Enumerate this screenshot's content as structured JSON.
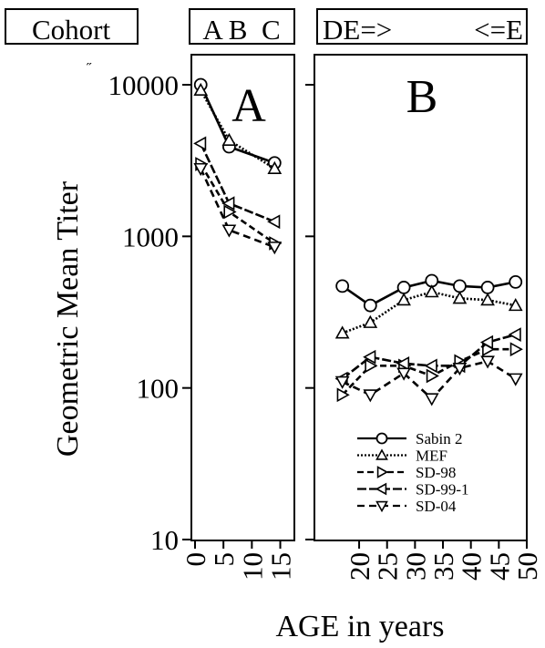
{
  "header": {
    "cohort_label": "Cohort",
    "groups_label": "A B  C",
    "direction_label_left": "DE=>",
    "direction_label_right": "<=E"
  },
  "stray_mark": "˝",
  "chart_data": [
    {
      "type": "line",
      "panel_label": "A",
      "xlabel": "AGE in years",
      "ylabel": "Geometric Mean Titer",
      "yscale": "log",
      "ylim": [
        10,
        20000
      ],
      "xlim": [
        0,
        17
      ],
      "xticks": [
        0,
        5,
        10,
        15
      ],
      "yticks": [
        10,
        100,
        1000,
        10000
      ],
      "series": [
        {
          "name": "Sabin 2",
          "marker": "circle",
          "x": [
            1,
            6,
            14
          ],
          "y": [
            10000,
            3900,
            3050
          ]
        },
        {
          "name": "MEF",
          "marker": "triangle-up",
          "x": [
            1,
            6,
            14
          ],
          "y": [
            9200,
            4300,
            2800
          ]
        },
        {
          "name": "SD-98",
          "marker": "triangle-right",
          "x": [
            1,
            6,
            14
          ],
          "y": [
            3000,
            1450,
            900
          ]
        },
        {
          "name": "SD-99-1",
          "marker": "triangle-left",
          "x": [
            1,
            6,
            14
          ],
          "y": [
            4100,
            1650,
            1250
          ]
        },
        {
          "name": "SD-04",
          "marker": "triangle-down",
          "x": [
            1,
            6,
            14
          ],
          "y": [
            2800,
            1100,
            850
          ]
        }
      ]
    },
    {
      "type": "line",
      "panel_label": "B",
      "xlabel": "AGE in years",
      "yscale": "log",
      "ylim": [
        10,
        20000
      ],
      "xlim": [
        12,
        50
      ],
      "xticks": [
        20,
        25,
        30,
        35,
        40,
        45,
        50
      ],
      "yticks": [
        10,
        100,
        1000,
        10000
      ],
      "legend": {
        "position": "bottom-center",
        "entries": [
          "Sabin 2",
          "MEF",
          "SD-98",
          "SD-99-1",
          "SD-04"
        ]
      },
      "series": [
        {
          "name": "Sabin 2",
          "marker": "circle",
          "x": [
            17,
            22,
            28,
            33,
            38,
            43,
            48
          ],
          "y": [
            470,
            350,
            460,
            510,
            470,
            460,
            500
          ]
        },
        {
          "name": "MEF",
          "marker": "triangle-up",
          "x": [
            17,
            22,
            28,
            33,
            38,
            43,
            48
          ],
          "y": [
            230,
            270,
            380,
            430,
            390,
            380,
            350
          ]
        },
        {
          "name": "SD-98",
          "marker": "triangle-right",
          "x": [
            17,
            22,
            28,
            33,
            38,
            43,
            48
          ],
          "y": [
            90,
            140,
            140,
            120,
            150,
            180,
            180
          ]
        },
        {
          "name": "SD-99-1",
          "marker": "triangle-left",
          "x": [
            17,
            22,
            28,
            33,
            38,
            43,
            48
          ],
          "y": [
            115,
            160,
            145,
            140,
            140,
            200,
            225
          ]
        },
        {
          "name": "SD-04",
          "marker": "triangle-down",
          "x": [
            17,
            22,
            28,
            33,
            38,
            43,
            48
          ],
          "y": [
            110,
            90,
            125,
            85,
            135,
            150,
            115
          ]
        }
      ]
    }
  ]
}
